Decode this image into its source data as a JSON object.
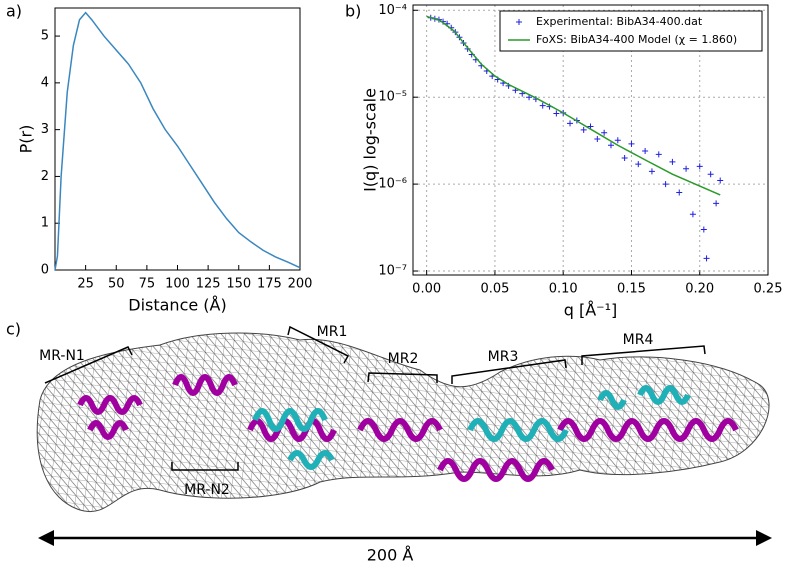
{
  "chart_data": [
    {
      "type": "line",
      "panel_label": "a)",
      "x_label": "Distance (Å)",
      "y_label": "P(r)",
      "color": "#3a87c0",
      "x": [
        0,
        2,
        5,
        10,
        15,
        20,
        25,
        30,
        40,
        50,
        60,
        70,
        80,
        90,
        100,
        110,
        120,
        130,
        140,
        150,
        160,
        170,
        180,
        190,
        200
      ],
      "values": [
        0,
        0.3,
        2.0,
        3.8,
        4.8,
        5.35,
        5.5,
        5.35,
        5.0,
        4.7,
        4.4,
        4.0,
        3.45,
        3.0,
        2.65,
        2.25,
        1.85,
        1.45,
        1.1,
        0.8,
        0.6,
        0.42,
        0.28,
        0.17,
        0.05
      ],
      "xlim": [
        0,
        200
      ],
      "ylim": [
        0,
        5.6
      ],
      "xticks": [
        25,
        50,
        75,
        100,
        125,
        150,
        175,
        200
      ],
      "yticks": [
        0,
        1,
        2,
        3,
        4,
        5
      ],
      "grid": false
    },
    {
      "type": "scatter",
      "panel_label": "b)",
      "x_label": "q [Å⁻¹]",
      "y_label": "I(q) log-scale",
      "y_scale": "log",
      "grid": true,
      "legend": "upper right",
      "xlim": [
        -0.01,
        0.25
      ],
      "ylim": [
        9e-08,
        0.000115
      ],
      "xticks": [
        {
          "value": 0,
          "label": "0.00"
        },
        0.05,
        {
          "value": 0.1,
          "label": "0.10"
        },
        0.15,
        {
          "value": 0.2,
          "label": "0.20"
        },
        0.25
      ],
      "yticks": [
        {
          "value": 1e-07,
          "label": "10⁻⁷"
        },
        {
          "value": 1e-06,
          "label": "10⁻⁶"
        },
        {
          "value": 1e-05,
          "label": "10⁻⁵"
        },
        {
          "value": 0.0001,
          "label": "10⁻⁴"
        }
      ],
      "series": [
        {
          "name": "Experimental: BibA34-400.dat",
          "type": "scatter",
          "color": "#2020e0",
          "x": [
            0.003,
            0.006,
            0.009,
            0.012,
            0.015,
            0.018,
            0.021,
            0.024,
            0.027,
            0.03,
            0.033,
            0.036,
            0.04,
            0.044,
            0.048,
            0.052,
            0.056,
            0.06,
            0.065,
            0.07,
            0.075,
            0.08,
            0.085,
            0.09,
            0.095,
            0.1,
            0.105,
            0.11,
            0.115,
            0.12,
            0.125,
            0.13,
            0.135,
            0.14,
            0.145,
            0.15,
            0.155,
            0.16,
            0.165,
            0.17,
            0.175,
            0.18,
            0.185,
            0.19,
            0.195,
            0.2,
            0.203,
            0.205,
            0.208,
            0.212,
            0.215
          ],
          "values": [
            8.2e-05,
            8e-05,
            7.8e-05,
            7.4e-05,
            7e-05,
            6.3e-05,
            5.6e-05,
            4.9e-05,
            4.2e-05,
            3.6e-05,
            3.1e-05,
            2.7e-05,
            2.3e-05,
            2e-05,
            1.75e-05,
            1.6e-05,
            1.45e-05,
            1.35e-05,
            1.2e-05,
            1.1e-05,
            1e-05,
            9.5e-06,
            8e-06,
            7.8e-06,
            6.5e-06,
            6.6e-06,
            5e-06,
            5.4e-06,
            4.2e-06,
            4.6e-06,
            3.3e-06,
            3.9e-06,
            2.8e-06,
            3.2e-06,
            2e-06,
            2.9e-06,
            1.7e-06,
            2.4e-06,
            1.4e-06,
            2.2e-06,
            1e-06,
            1.8e-06,
            8e-07,
            1.5e-06,
            4.5e-07,
            1.6e-06,
            3e-07,
            1.4e-07,
            1.3e-06,
            6e-07,
            1.1e-06
          ]
        },
        {
          "name": "FoXS: BibA34-400 Model (χ = 1.860)",
          "type": "line",
          "color": "#2a9a2a",
          "x": [
            0,
            0.01,
            0.02,
            0.03,
            0.04,
            0.05,
            0.06,
            0.08,
            0.1,
            0.12,
            0.14,
            0.16,
            0.18,
            0.2,
            0.215
          ],
          "values": [
            8.5e-05,
            7.6e-05,
            5.8e-05,
            3.7e-05,
            2.4e-05,
            1.75e-05,
            1.4e-05,
            9.8e-06,
            6.6e-06,
            4.3e-06,
            2.8e-06,
            1.9e-06,
            1.3e-06,
            9.5e-07,
            7.5e-07
          ]
        }
      ]
    }
  ],
  "figure": {
    "panel_label": "c)",
    "labels": [
      "MR-N1",
      "MR1",
      "MR2",
      "MR3",
      "MR4",
      "MR-N2"
    ],
    "scale_label": "200 Å"
  }
}
